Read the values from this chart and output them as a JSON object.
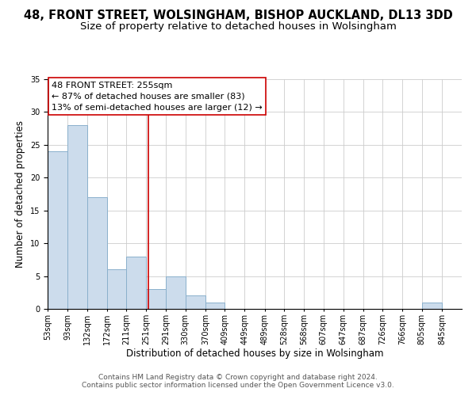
{
  "title": "48, FRONT STREET, WOLSINGHAM, BISHOP AUCKLAND, DL13 3DD",
  "subtitle": "Size of property relative to detached houses in Wolsingham",
  "xlabel": "Distribution of detached houses by size in Wolsingham",
  "ylabel": "Number of detached properties",
  "bar_left_edges": [
    53,
    93,
    132,
    172,
    211,
    251,
    291,
    330,
    370,
    409,
    449,
    489,
    528,
    568,
    607,
    647,
    687,
    726,
    766,
    805
  ],
  "bar_widths": [
    40,
    39,
    40,
    39,
    40,
    40,
    39,
    40,
    39,
    40,
    40,
    39,
    40,
    39,
    40,
    40,
    39,
    40,
    39,
    40
  ],
  "bar_heights": [
    24,
    28,
    17,
    6,
    8,
    3,
    5,
    2,
    1,
    0,
    0,
    0,
    0,
    0,
    0,
    0,
    0,
    0,
    0,
    1
  ],
  "bar_color": "#ccdcec",
  "bar_edgecolor": "#8ab0cc",
  "tick_labels": [
    "53sqm",
    "93sqm",
    "132sqm",
    "172sqm",
    "211sqm",
    "251sqm",
    "291sqm",
    "330sqm",
    "370sqm",
    "409sqm",
    "449sqm",
    "489sqm",
    "528sqm",
    "568sqm",
    "607sqm",
    "647sqm",
    "687sqm",
    "726sqm",
    "766sqm",
    "805sqm",
    "845sqm"
  ],
  "vline_x": 255,
  "vline_color": "#cc0000",
  "annotation_title": "48 FRONT STREET: 255sqm",
  "annotation_line1": "← 87% of detached houses are smaller (83)",
  "annotation_line2": "13% of semi-detached houses are larger (12) →",
  "annotation_box_color": "white",
  "annotation_border_color": "#cc0000",
  "ylim": [
    0,
    35
  ],
  "yticks": [
    0,
    5,
    10,
    15,
    20,
    25,
    30,
    35
  ],
  "xlim_left": 53,
  "xlim_right": 885,
  "footer1": "Contains HM Land Registry data © Crown copyright and database right 2024.",
  "footer2": "Contains public sector information licensed under the Open Government Licence v3.0.",
  "title_fontsize": 10.5,
  "subtitle_fontsize": 9.5,
  "axis_label_fontsize": 8.5,
  "tick_fontsize": 7,
  "annotation_fontsize": 8,
  "footer_fontsize": 6.5
}
